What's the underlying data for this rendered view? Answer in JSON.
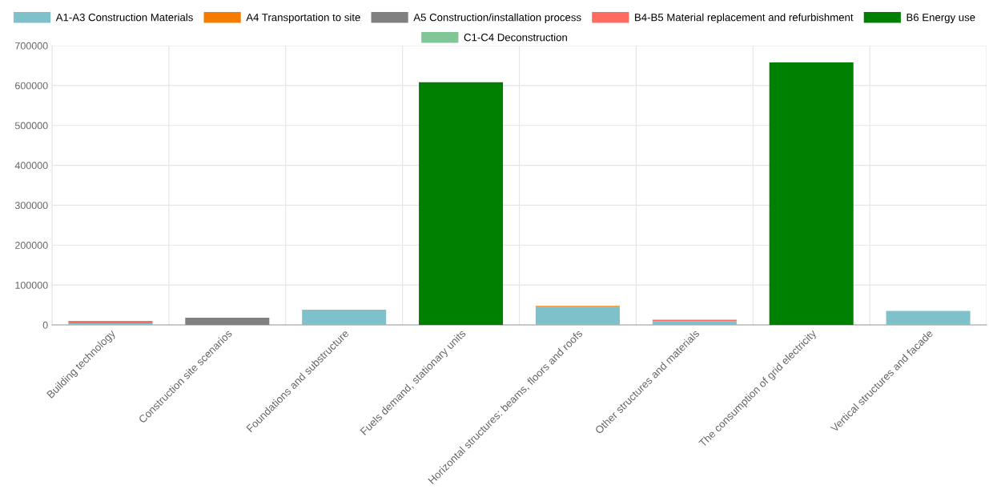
{
  "chart_data": {
    "type": "bar",
    "stacked": true,
    "categories": [
      "Building technology",
      "Construction site scenarios",
      "Foundations and substructure",
      "Fuels demand, stationary units",
      "Horizontal structures: beams, floors and roofs",
      "Other structures and materials",
      "The consumption of grid electricity",
      "Vertical structures and facade"
    ],
    "series": [
      {
        "name": "A1-A3 Construction Materials",
        "color": "#7fc1ca",
        "values": [
          4000,
          0,
          38000,
          0,
          45000,
          9000,
          0,
          35000
        ]
      },
      {
        "name": "A4 Transportation to site",
        "color": "#f57c00",
        "values": [
          0,
          0,
          0,
          0,
          2500,
          0,
          0,
          0
        ]
      },
      {
        "name": "A5 Construction/installation process",
        "color": "#808080",
        "values": [
          0,
          18000,
          0,
          0,
          0,
          0,
          0,
          0
        ]
      },
      {
        "name": "B4-B5 Material replacement and refurbishment",
        "color": "#ff6b5e",
        "values": [
          6000,
          0,
          0,
          0,
          0,
          4000,
          0,
          0
        ]
      },
      {
        "name": "B6 Energy use",
        "color": "#008000",
        "values": [
          0,
          0,
          0,
          608000,
          0,
          0,
          658000,
          0
        ]
      },
      {
        "name": "C1-C4 Deconstruction",
        "color": "#80c697",
        "values": [
          0,
          0,
          0,
          0,
          0,
          0,
          0,
          0
        ]
      }
    ],
    "ylim": [
      0,
      700000
    ],
    "yticks": [
      0,
      100000,
      200000,
      300000,
      400000,
      500000,
      600000,
      700000
    ],
    "grid": true,
    "legend": "top"
  }
}
